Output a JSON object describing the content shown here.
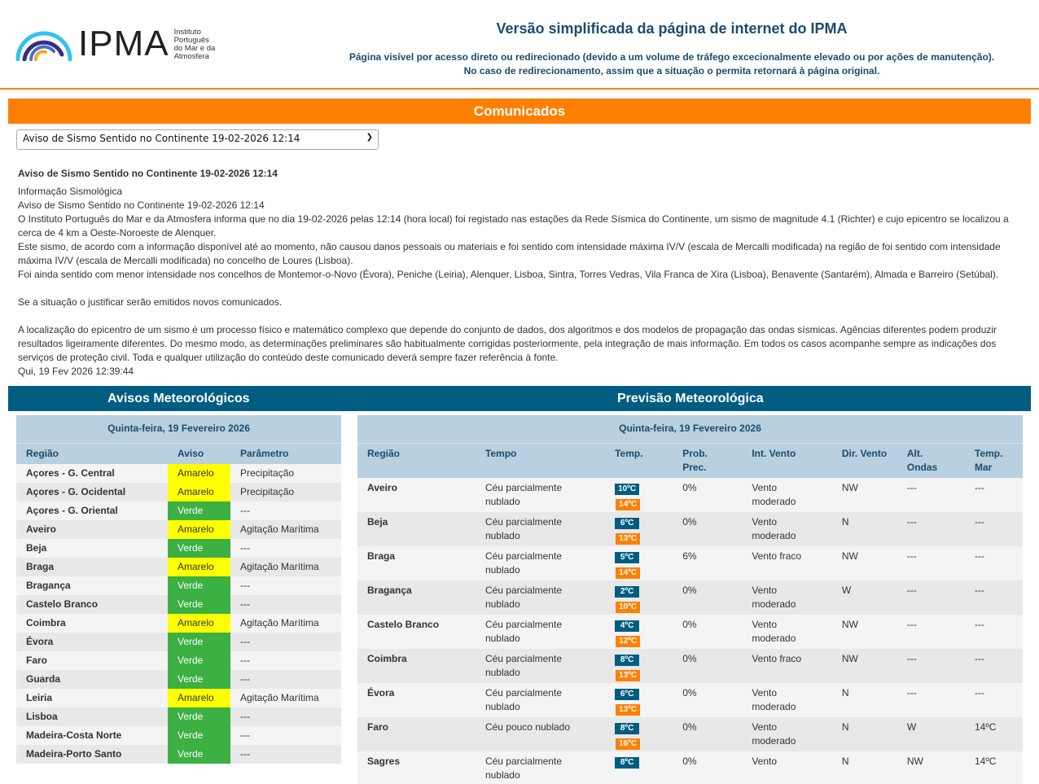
{
  "header": {
    "logo_text": "IPMA",
    "logo_sub": [
      "Instituto",
      "Português",
      "do Mar e da",
      "Atmosfera"
    ],
    "title": "Versão simplificada da página de internet do IPMA",
    "subtitle1": "Página visível por acesso direto ou redirecionado (devido a um volume de tráfego excecionalmente elevado ou por ações de manutenção).",
    "subtitle2": "No caso de redirecionamento, assim que a situação o permita retornará à página original."
  },
  "comunicados": {
    "title": "Comunicados",
    "selected": "Aviso de Sismo Sentido no Continente 19-02-2026 12:14",
    "heading": "Aviso de Sismo Sentido no Continente 19-02-2026 12:14",
    "lines": [
      "Informação Sismológica",
      "Aviso de Sismo Sentido no Continente 19-02-2026 12:14",
      "O Instituto Português do Mar e da Atmosfera informa que no dia 19-02-2026 pelas 12:14 (hora local) foi registado nas estações da Rede Sísmica do Continente, um sismo de magnitude 4.1 (Richter) e cujo epicentro se localizou a cerca de 4 km a Oeste-Noroeste de Alenquer.",
      "Este sismo, de acordo com a informação disponível até ao momento, não causou danos pessoais ou materiais e foi sentido com intensidade máxima IV/V (escala de Mercalli modificada) na região de foi sentido com intensidade máxima IV/V (escala de Mercalli modificada) no concelho de Loures (Lisboa).",
      "Foi ainda sentido com menor intensidade nos concelhos de Montemor-o-Novo (Évora), Peniche (Leiria), Alenquer, Lisboa, Sintra, Torres Vedras, Vila Franca de Xira (Lisboa), Benavente (Santarém), Almada e Barreiro (Setúbal).",
      "",
      "Se a situação o justificar serão emitidos novos comunicados.",
      "",
      "A localização do epicentro de um sismo é um processo físico e matemático complexo que depende do conjunto de dados, dos algoritmos e dos modelos de propagação das ondas sísmicas. Agências diferentes podem produzir resultados ligeiramente diferentes. Do mesmo modo, as determinações preliminares são habitualmente corrigidas posteriormente, pela integração de mais informação. Em todos os casos acompanhe sempre as indicações dos serviços de proteção civil. Toda e qualquer utilização do conteúdo deste comunicado deverá sempre fazer referência à fonte.",
      "Qui, 19 Fev 2026 12:39:44"
    ]
  },
  "colors": {
    "Amarelo": "#ffff00",
    "Verde": "#3cb043",
    "Amarelo_text": "#333",
    "Verde_text": "#fff"
  },
  "avisos": {
    "title": "Avisos Meteorológicos",
    "date": "Quinta-feira, 19 Fevereiro 2026",
    "headers": [
      "Região",
      "Aviso",
      "Parâmetro"
    ],
    "rows": [
      [
        "Açores - G. Central",
        "Amarelo",
        "Precipitação"
      ],
      [
        "Açores - G. Ocidental",
        "Amarelo",
        "Precipitação"
      ],
      [
        "Açores - G. Oriental",
        "Verde",
        "---"
      ],
      [
        "Aveiro",
        "Amarelo",
        "Agitação Marítima"
      ],
      [
        "Beja",
        "Verde",
        "---"
      ],
      [
        "Braga",
        "Amarelo",
        "Agitação Marítima"
      ],
      [
        "Bragança",
        "Verde",
        "---"
      ],
      [
        "Castelo Branco",
        "Verde",
        "---"
      ],
      [
        "Coimbra",
        "Amarelo",
        "Agitação Marítima"
      ],
      [
        "Évora",
        "Verde",
        "---"
      ],
      [
        "Faro",
        "Verde",
        "---"
      ],
      [
        "Guarda",
        "Verde",
        "---"
      ],
      [
        "Leiria",
        "Amarelo",
        "Agitação Marítima"
      ],
      [
        "Lisboa",
        "Verde",
        "---"
      ],
      [
        "Madeira-Costa Norte",
        "Verde",
        "---"
      ],
      [
        "Madeira-Porto Santo",
        "Verde",
        "---"
      ]
    ]
  },
  "previsao": {
    "title": "Previsão Meteorológica",
    "date": "Quinta-feira, 19 Fevereiro 2026",
    "headers": [
      "Região",
      "Tempo",
      "Temp.",
      "Prob. Prec.",
      "Int. Vento",
      "Dir. Vento",
      "Alt. Ondas",
      "Temp. Mar"
    ],
    "rows": [
      [
        "Aveiro",
        "Céu parcialmente nublado",
        "10ºC",
        "14ºC",
        "0%",
        "Vento moderado",
        "NW",
        "---",
        "---"
      ],
      [
        "Beja",
        "Céu parcialmente nublado",
        "6ºC",
        "13ºC",
        "0%",
        "Vento moderado",
        "N",
        "---",
        "---"
      ],
      [
        "Braga",
        "Céu parcialmente nublado",
        "5ºC",
        "14ºC",
        "6%",
        "Vento fraco",
        "NW",
        "---",
        "---"
      ],
      [
        "Bragança",
        "Céu parcialmente nublado",
        "2ºC",
        "10ºC",
        "0%",
        "Vento moderado",
        "W",
        "---",
        "---"
      ],
      [
        "Castelo Branco",
        "Céu parcialmente nublado",
        "4ºC",
        "12ºC",
        "0%",
        "Vento moderado",
        "NW",
        "---",
        "---"
      ],
      [
        "Coimbra",
        "Céu parcialmente nublado",
        "8ºC",
        "13ºC",
        "0%",
        "Vento fraco",
        "NW",
        "---",
        "---"
      ],
      [
        "Évora",
        "Céu parcialmente nublado",
        "6ºC",
        "13ºC",
        "0%",
        "Vento moderado",
        "N",
        "---",
        "---"
      ],
      [
        "Faro",
        "Céu pouco nublado",
        "8ºC",
        "16ºC",
        "0%",
        "Vento moderado",
        "N",
        "W",
        "14ºC"
      ],
      [
        "Sagres",
        "Céu parcialmente nublado",
        "8ºC",
        "",
        "0%",
        "Vento",
        "N",
        "NW",
        "14ºC"
      ]
    ]
  }
}
